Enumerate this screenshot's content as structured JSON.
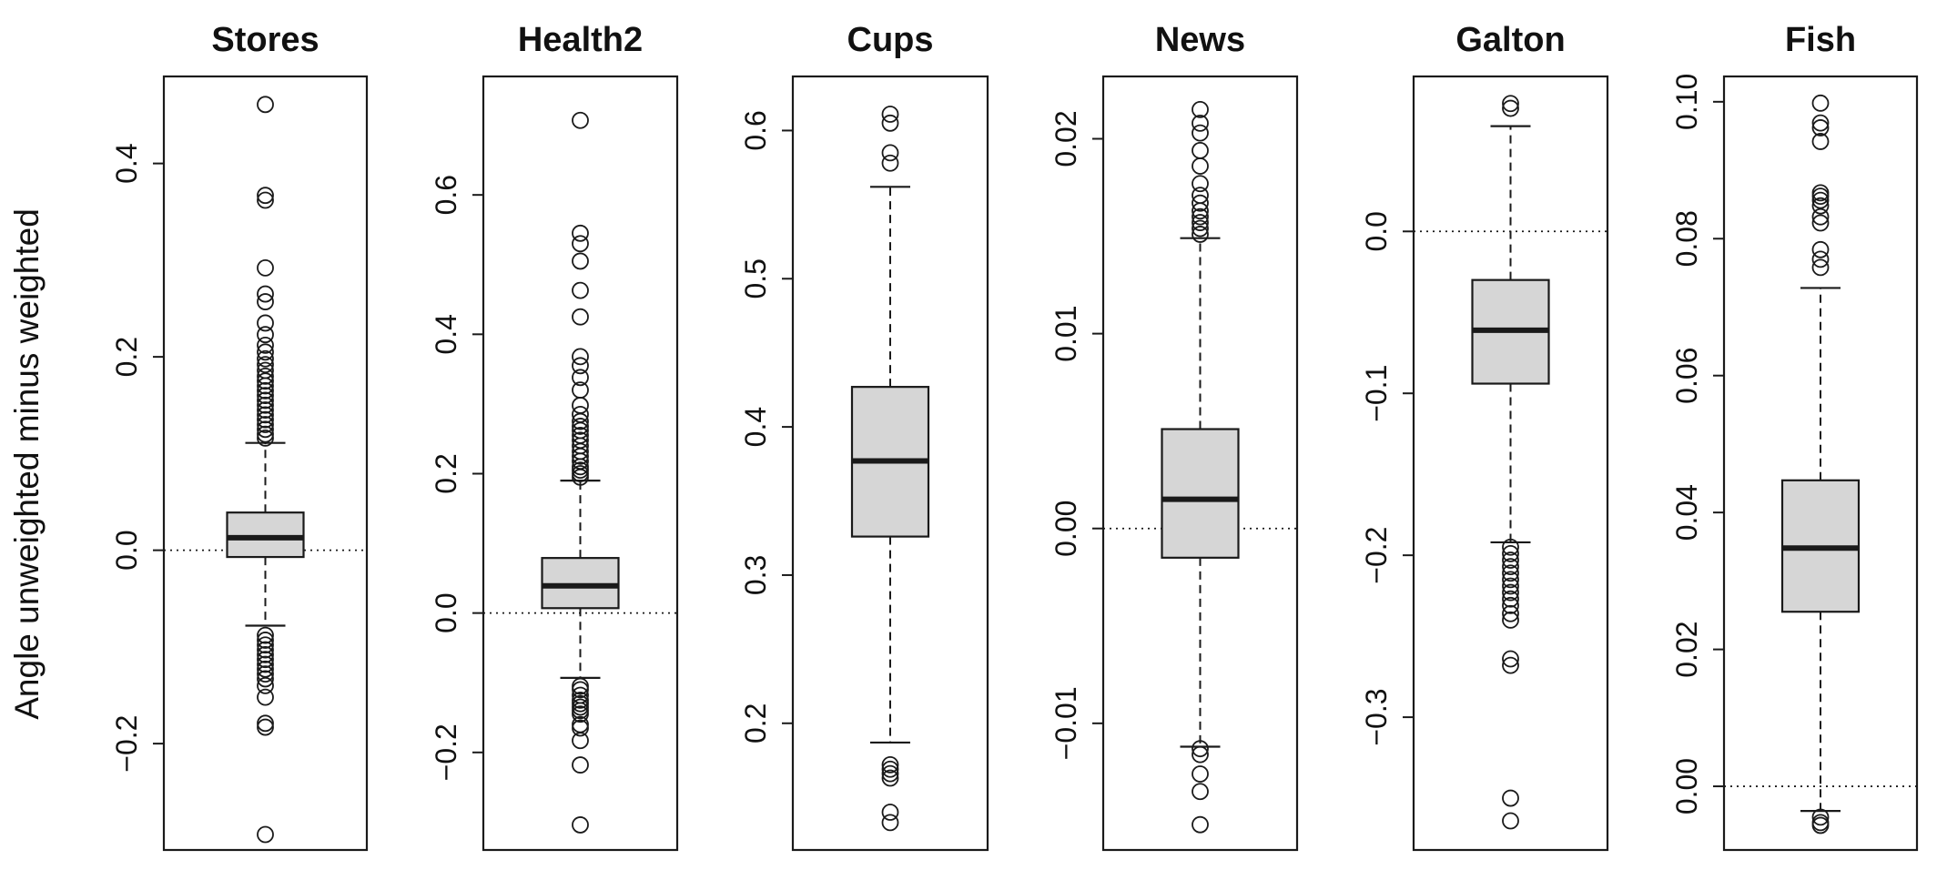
{
  "ylabel": "Angle unweighted minus weighted",
  "style": {
    "box_fill": "#d6d6d6",
    "stroke": "#1a1a1a"
  },
  "chart_data": [
    {
      "type": "box",
      "title": "Stores",
      "ylim": [
        -0.31,
        0.49
      ],
      "yticks": [
        -0.2,
        0.0,
        0.2,
        0.4
      ],
      "ytick_labels": [
        "−0.2",
        "0.0",
        "0.2",
        "0.4"
      ],
      "reference_line": 0,
      "stats": {
        "min": -0.078,
        "q1": -0.007,
        "median": 0.013,
        "q3": 0.039,
        "max": 0.111
      },
      "outliers": [
        0.461,
        0.367,
        0.362,
        0.292,
        0.265,
        0.257,
        0.235,
        0.223,
        0.212,
        0.205,
        0.198,
        0.192,
        0.186,
        0.18,
        0.175,
        0.17,
        0.165,
        0.16,
        0.155,
        0.15,
        0.145,
        0.14,
        0.135,
        0.13,
        0.125,
        0.12,
        0.116,
        -0.088,
        -0.093,
        -0.098,
        -0.103,
        -0.108,
        -0.113,
        -0.118,
        -0.123,
        -0.128,
        -0.133,
        -0.14,
        -0.152,
        -0.179,
        -0.183,
        -0.294
      ]
    },
    {
      "type": "box",
      "title": "Health2",
      "ylim": [
        -0.34,
        0.77
      ],
      "yticks": [
        -0.2,
        0.0,
        0.2,
        0.4,
        0.6
      ],
      "ytick_labels": [
        "−0.2",
        "0.0",
        "0.2",
        "0.4",
        "0.6"
      ],
      "reference_line": 0,
      "stats": {
        "min": -0.093,
        "q1": 0.007,
        "median": 0.039,
        "q3": 0.079,
        "max": 0.19
      },
      "outliers": [
        0.707,
        0.545,
        0.53,
        0.505,
        0.463,
        0.425,
        0.368,
        0.355,
        0.338,
        0.32,
        0.298,
        0.285,
        0.275,
        0.268,
        0.262,
        0.255,
        0.248,
        0.24,
        0.232,
        0.225,
        0.218,
        0.21,
        0.205,
        0.2,
        0.195,
        -0.105,
        -0.11,
        -0.118,
        -0.125,
        -0.13,
        -0.135,
        -0.14,
        -0.145,
        -0.16,
        -0.165,
        -0.183,
        -0.218,
        -0.304
      ]
    },
    {
      "type": "box",
      "title": "Cups",
      "ylim": [
        0.1145,
        0.6365
      ],
      "yticks": [
        0.2,
        0.3,
        0.4,
        0.5,
        0.6
      ],
      "ytick_labels": [
        "0.2",
        "0.3",
        "0.4",
        "0.5",
        "0.6"
      ],
      "reference_line": null,
      "stats": {
        "min": 0.187,
        "q1": 0.326,
        "median": 0.377,
        "q3": 0.427,
        "max": 0.562
      },
      "outliers": [
        0.611,
        0.605,
        0.585,
        0.578,
        0.172,
        0.169,
        0.166,
        0.163,
        0.14,
        0.133
      ]
    },
    {
      "type": "box",
      "title": "News",
      "ylim": [
        -0.0165,
        0.0232
      ],
      "yticks": [
        -0.01,
        0.0,
        0.01,
        0.02
      ],
      "ytick_labels": [
        "−0.01",
        "0.00",
        "0.01",
        "0.02"
      ],
      "reference_line": 0,
      "stats": {
        "min": -0.0112,
        "q1": -0.0015,
        "median": 0.0015,
        "q3": 0.0051,
        "max": 0.0149
      },
      "outliers": [
        0.0215,
        0.0208,
        0.0203,
        0.0194,
        0.0186,
        0.0177,
        0.0171,
        0.0167,
        0.0163,
        0.016,
        0.0157,
        0.0154,
        0.0151,
        -0.0113,
        -0.0116,
        -0.0126,
        -0.0135,
        -0.0152
      ]
    },
    {
      "type": "box",
      "title": "Galton",
      "ylim": [
        -0.382,
        0.0957
      ],
      "yticks": [
        -0.3,
        -0.2,
        -0.1,
        0.0
      ],
      "ytick_labels": [
        "−0.3",
        "−0.2",
        "−0.1",
        "0.0"
      ],
      "reference_line": 0,
      "stats": {
        "min": -0.192,
        "q1": -0.094,
        "median": -0.061,
        "q3": -0.03,
        "max": 0.065
      },
      "outliers": [
        0.079,
        0.076,
        -0.195,
        -0.199,
        -0.203,
        -0.207,
        -0.211,
        -0.215,
        -0.219,
        -0.223,
        -0.227,
        -0.231,
        -0.236,
        -0.24,
        -0.264,
        -0.268,
        -0.35,
        -0.364
      ]
    },
    {
      "type": "box",
      "title": "Fish",
      "ylim": [
        -0.0093,
        0.1037
      ],
      "yticks": [
        0.0,
        0.02,
        0.04,
        0.06,
        0.08,
        0.1
      ],
      "ytick_labels": [
        "0.00",
        "0.02",
        "0.04",
        "0.06",
        "0.08",
        "0.10"
      ],
      "reference_line": 0,
      "stats": {
        "min": -0.0036,
        "q1": 0.0255,
        "median": 0.0348,
        "q3": 0.0447,
        "max": 0.0728
      },
      "outliers": [
        0.0998,
        0.0969,
        0.0962,
        0.0942,
        0.0867,
        0.0862,
        0.0856,
        0.0848,
        0.0832,
        0.0823,
        0.0784,
        0.077,
        0.0758,
        -0.0045,
        -0.0053,
        -0.0057
      ]
    }
  ]
}
